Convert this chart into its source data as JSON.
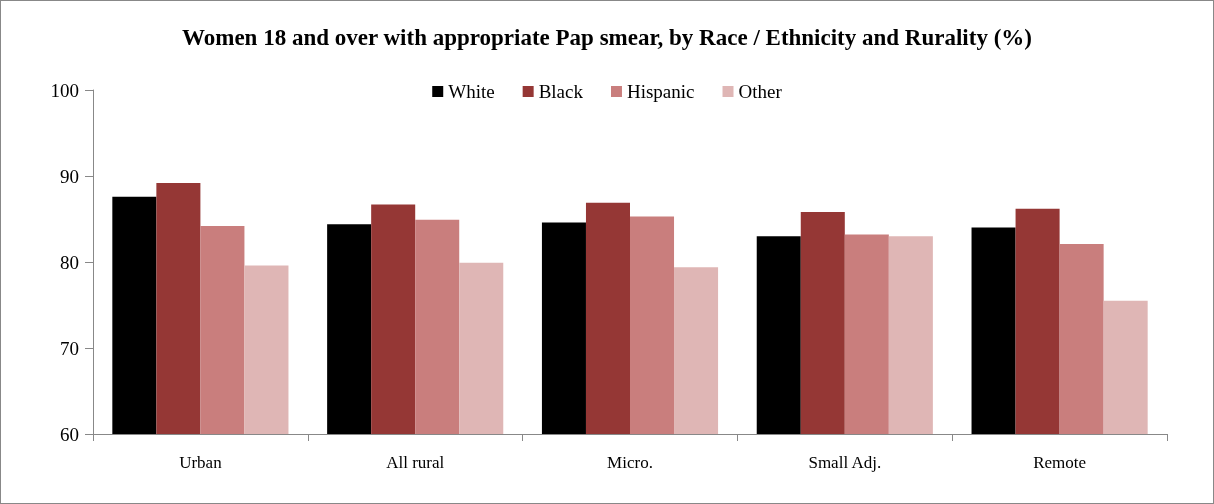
{
  "chart_data": {
    "type": "bar",
    "title": "Women 18 and over with appropriate Pap smear, by Race / Ethnicity and Rurality (%)",
    "categories": [
      "Urban",
      "All rural",
      "Micro.",
      "Small Adj.",
      "Remote"
    ],
    "series": [
      {
        "name": "White",
        "color": "#000000",
        "values": [
          87.6,
          84.4,
          84.6,
          83.0,
          84.0
        ]
      },
      {
        "name": "Black",
        "color": "#953735",
        "values": [
          89.2,
          86.7,
          86.9,
          85.8,
          86.2
        ]
      },
      {
        "name": "Hispanic",
        "color": "#c97e7d",
        "values": [
          84.2,
          84.9,
          85.3,
          83.2,
          82.1
        ]
      },
      {
        "name": "Other",
        "color": "#dfb6b5",
        "values": [
          79.6,
          79.9,
          79.4,
          83.0,
          75.5
        ]
      }
    ],
    "ylim": [
      60,
      100
    ],
    "yticks": [
      60,
      70,
      80,
      90,
      100
    ],
    "grid": false,
    "legend": "top"
  }
}
